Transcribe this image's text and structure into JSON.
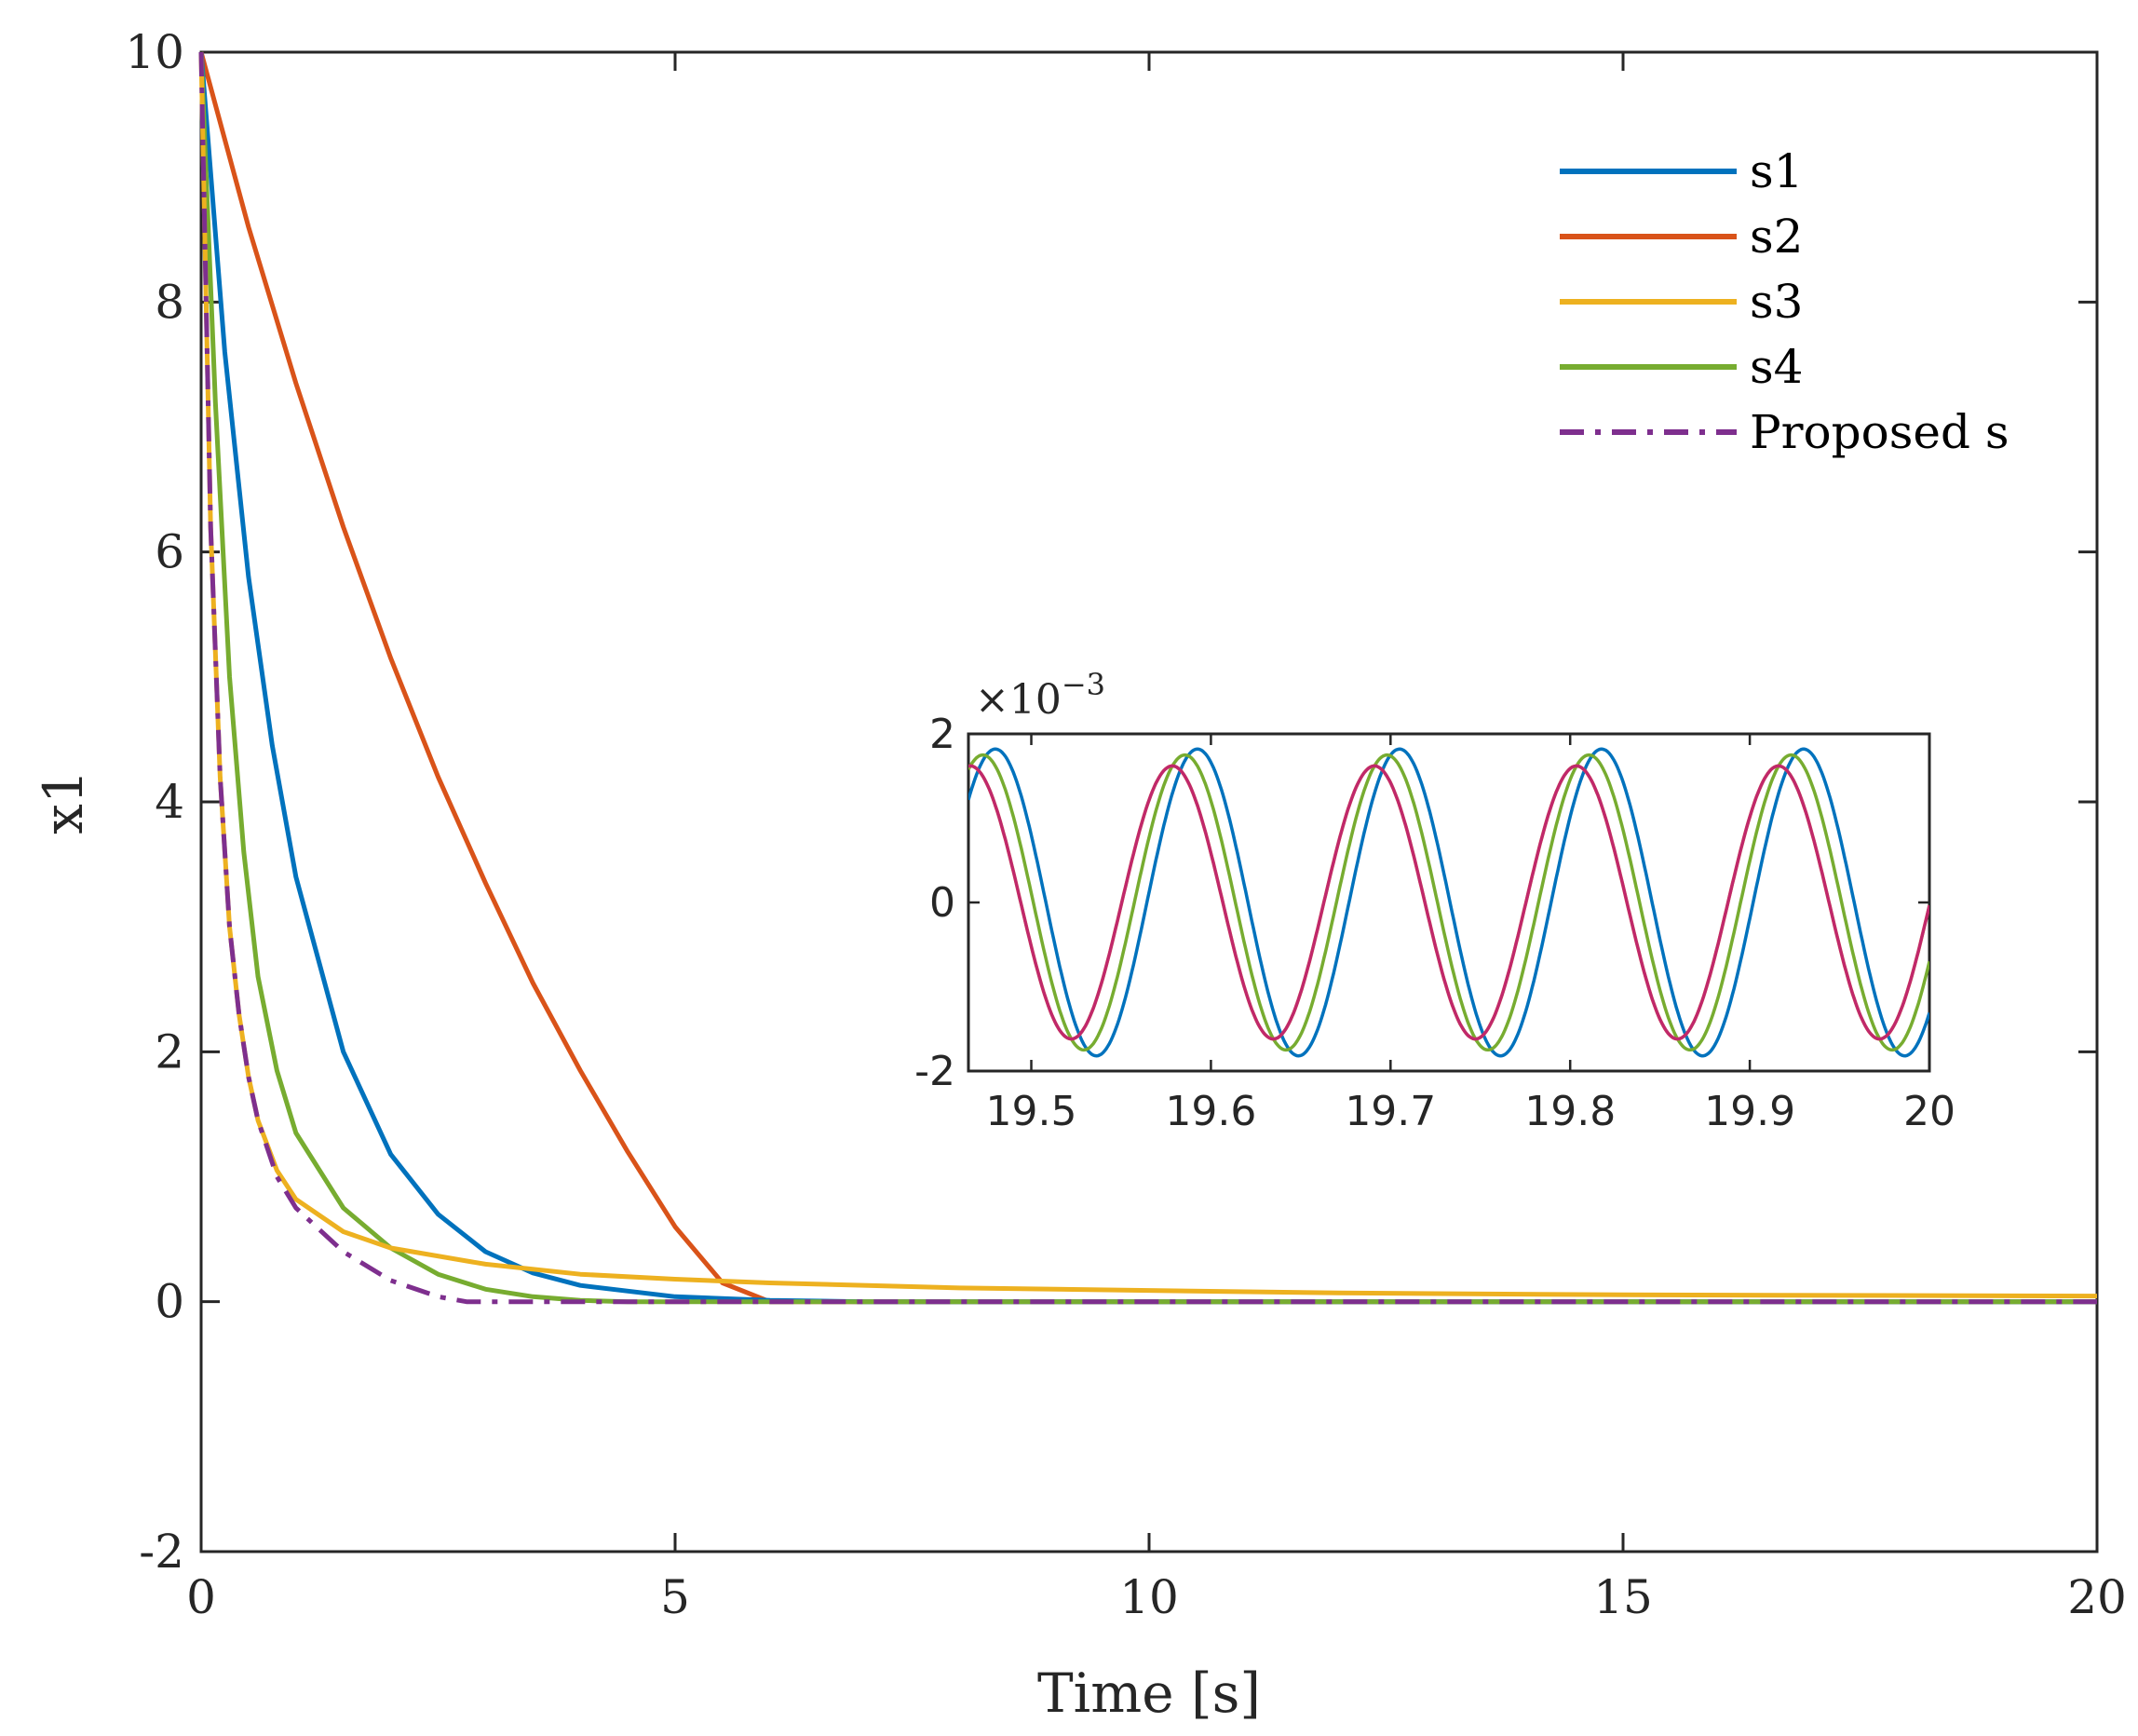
{
  "chart_data": [
    {
      "type": "line",
      "xlabel": "Time [s]",
      "ylabel": "x1",
      "xlim": [
        0,
        20
      ],
      "ylim": [
        -2,
        10
      ],
      "xticks": [
        0,
        5,
        10,
        15,
        20
      ],
      "xtick_labels": [
        "0",
        "5",
        "10",
        "15",
        "20"
      ],
      "yticks": [
        -2,
        0,
        2,
        4,
        6,
        8,
        10
      ],
      "ytick_labels": [
        "-2",
        "0",
        "2",
        "4",
        "6",
        "8",
        "10"
      ],
      "grid": false,
      "legend_position": "top-right",
      "series": [
        {
          "name": "s1",
          "color": "#0072BD",
          "style": "solid",
          "points": [
            [
              0,
              10
            ],
            [
              0.25,
              7.6
            ],
            [
              0.5,
              5.8
            ],
            [
              0.75,
              4.45
            ],
            [
              1,
              3.4
            ],
            [
              1.5,
              2.0
            ],
            [
              2,
              1.18
            ],
            [
              2.5,
              0.7
            ],
            [
              3,
              0.4
            ],
            [
              3.5,
              0.23
            ],
            [
              4,
              0.13
            ],
            [
              5,
              0.04
            ],
            [
              6,
              0.01
            ],
            [
              7,
              0
            ],
            [
              20,
              0
            ]
          ]
        },
        {
          "name": "s2",
          "color": "#D95319",
          "style": "solid",
          "points": [
            [
              0,
              10
            ],
            [
              0.5,
              8.6
            ],
            [
              1,
              7.35
            ],
            [
              1.5,
              6.2
            ],
            [
              2,
              5.15
            ],
            [
              2.5,
              4.2
            ],
            [
              3,
              3.35
            ],
            [
              3.5,
              2.55
            ],
            [
              4,
              1.85
            ],
            [
              4.5,
              1.2
            ],
            [
              5,
              0.6
            ],
            [
              5.5,
              0.15
            ],
            [
              6,
              0
            ],
            [
              20,
              0
            ]
          ]
        },
        {
          "name": "s3",
          "color": "#EDB120",
          "style": "solid",
          "points": [
            [
              0,
              10
            ],
            [
              0.1,
              6.2
            ],
            [
              0.2,
              4.2
            ],
            [
              0.3,
              3.0
            ],
            [
              0.4,
              2.3
            ],
            [
              0.5,
              1.8
            ],
            [
              0.6,
              1.45
            ],
            [
              0.8,
              1.05
            ],
            [
              1,
              0.82
            ],
            [
              1.5,
              0.56
            ],
            [
              2,
              0.43
            ],
            [
              3,
              0.3
            ],
            [
              4,
              0.22
            ],
            [
              5,
              0.18
            ],
            [
              6,
              0.15
            ],
            [
              8,
              0.11
            ],
            [
              10,
              0.09
            ],
            [
              12,
              0.07
            ],
            [
              15,
              0.055
            ],
            [
              20,
              0.045
            ]
          ]
        },
        {
          "name": "s4",
          "color": "#77AC30",
          "style": "solid",
          "points": [
            [
              0,
              10
            ],
            [
              0.15,
              7.2
            ],
            [
              0.3,
              5.0
            ],
            [
              0.45,
              3.6
            ],
            [
              0.6,
              2.6
            ],
            [
              0.8,
              1.85
            ],
            [
              1,
              1.35
            ],
            [
              1.5,
              0.75
            ],
            [
              2,
              0.43
            ],
            [
              2.5,
              0.22
            ],
            [
              3,
              0.1
            ],
            [
              3.5,
              0.04
            ],
            [
              4,
              0.01
            ],
            [
              4.5,
              0
            ],
            [
              20,
              0
            ]
          ]
        },
        {
          "name": "Proposed s",
          "color": "#7E2F8E",
          "style": "dashdot",
          "points": [
            [
              0,
              10
            ],
            [
              0.1,
              6.2
            ],
            [
              0.2,
              4.2
            ],
            [
              0.3,
              3.0
            ],
            [
              0.4,
              2.3
            ],
            [
              0.5,
              1.8
            ],
            [
              0.6,
              1.45
            ],
            [
              0.8,
              1.0
            ],
            [
              1,
              0.75
            ],
            [
              1.5,
              0.4
            ],
            [
              2,
              0.17
            ],
            [
              2.5,
              0.04
            ],
            [
              2.8,
              0
            ],
            [
              20,
              0
            ]
          ]
        }
      ]
    },
    {
      "type": "line",
      "role": "inset",
      "xlim": [
        19.465,
        20
      ],
      "ylim": [
        -2,
        2
      ],
      "exponent_label": "×10",
      "exponent_power": "−3",
      "xticks": [
        19.5,
        19.6,
        19.7,
        19.8,
        19.9,
        20
      ],
      "xtick_labels": [
        "19.5",
        "19.6",
        "19.7",
        "19.8",
        "19.9",
        "20"
      ],
      "yticks": [
        -2,
        0,
        2
      ],
      "ytick_labels": [
        "-2",
        "0",
        "2"
      ],
      "series": [
        {
          "name": "s1",
          "color": "#0072BD",
          "amplitude": 1.82,
          "period": 0.1125,
          "peak_time": 19.48
        },
        {
          "name": "s4",
          "color": "#77AC30",
          "amplitude": 1.75,
          "period": 0.1125,
          "peak_time": 19.473
        },
        {
          "name": "s3",
          "color": "#EDB120",
          "amplitude": 1.62,
          "period": 0.1125,
          "peak_time": 19.466
        },
        {
          "name": "Proposed s",
          "color": "#C0286B",
          "amplitude": 1.62,
          "period": 0.1125,
          "peak_time": 19.466
        }
      ]
    }
  ]
}
